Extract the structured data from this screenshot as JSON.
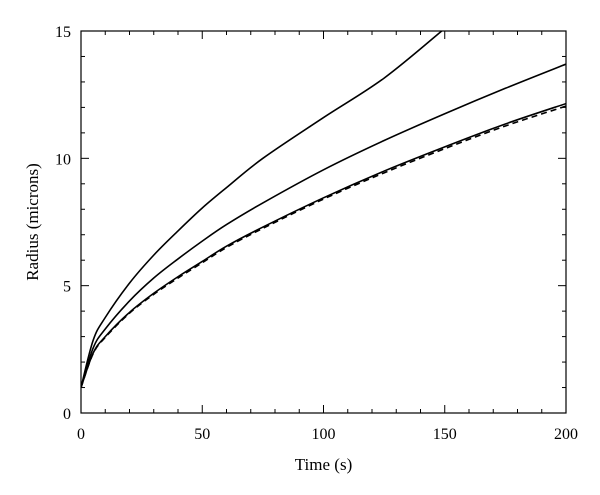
{
  "chart_data": {
    "type": "line",
    "title": "",
    "xlabel": "Time (s)",
    "ylabel": "Radius (microns)",
    "xlim": [
      0,
      200
    ],
    "ylim": [
      0,
      15
    ],
    "xticks": [
      0,
      50,
      100,
      150,
      200
    ],
    "yticks": [
      0,
      5,
      10,
      15
    ],
    "grid": false,
    "legend": "none",
    "series": [
      {
        "style": "solid",
        "color": "#000000",
        "points": [
          [
            0,
            1.0
          ],
          [
            5,
            2.85
          ],
          [
            10,
            3.75
          ],
          [
            20,
            5.1
          ],
          [
            30,
            6.2
          ],
          [
            40,
            7.15
          ],
          [
            50,
            8.05
          ],
          [
            60,
            8.85
          ],
          [
            75,
            10.0
          ],
          [
            100,
            11.6
          ],
          [
            125,
            13.15
          ],
          [
            150,
            15.1
          ]
        ]
      },
      {
        "style": "solid",
        "color": "#000000",
        "points": [
          [
            0,
            1.0
          ],
          [
            5,
            2.55
          ],
          [
            10,
            3.3
          ],
          [
            20,
            4.4
          ],
          [
            30,
            5.3
          ],
          [
            40,
            6.05
          ],
          [
            50,
            6.75
          ],
          [
            60,
            7.4
          ],
          [
            75,
            8.25
          ],
          [
            100,
            9.55
          ],
          [
            125,
            10.7
          ],
          [
            150,
            11.75
          ],
          [
            175,
            12.75
          ],
          [
            200,
            13.7
          ]
        ]
      },
      {
        "style": "solid",
        "color": "#000000",
        "points": [
          [
            0,
            1.0
          ],
          [
            5,
            2.35
          ],
          [
            10,
            3.0
          ],
          [
            20,
            3.95
          ],
          [
            30,
            4.7
          ],
          [
            40,
            5.35
          ],
          [
            50,
            5.95
          ],
          [
            60,
            6.55
          ],
          [
            75,
            7.3
          ],
          [
            100,
            8.45
          ],
          [
            125,
            9.5
          ],
          [
            150,
            10.45
          ],
          [
            175,
            11.35
          ],
          [
            200,
            12.15
          ]
        ]
      },
      {
        "style": "dashed",
        "color": "#000000",
        "points": [
          [
            0,
            1.0
          ],
          [
            5,
            2.33
          ],
          [
            10,
            2.97
          ],
          [
            20,
            3.92
          ],
          [
            30,
            4.66
          ],
          [
            40,
            5.3
          ],
          [
            50,
            5.9
          ],
          [
            60,
            6.5
          ],
          [
            75,
            7.25
          ],
          [
            100,
            8.4
          ],
          [
            125,
            9.43
          ],
          [
            150,
            10.38
          ],
          [
            175,
            11.27
          ],
          [
            200,
            12.05
          ]
        ]
      }
    ]
  }
}
